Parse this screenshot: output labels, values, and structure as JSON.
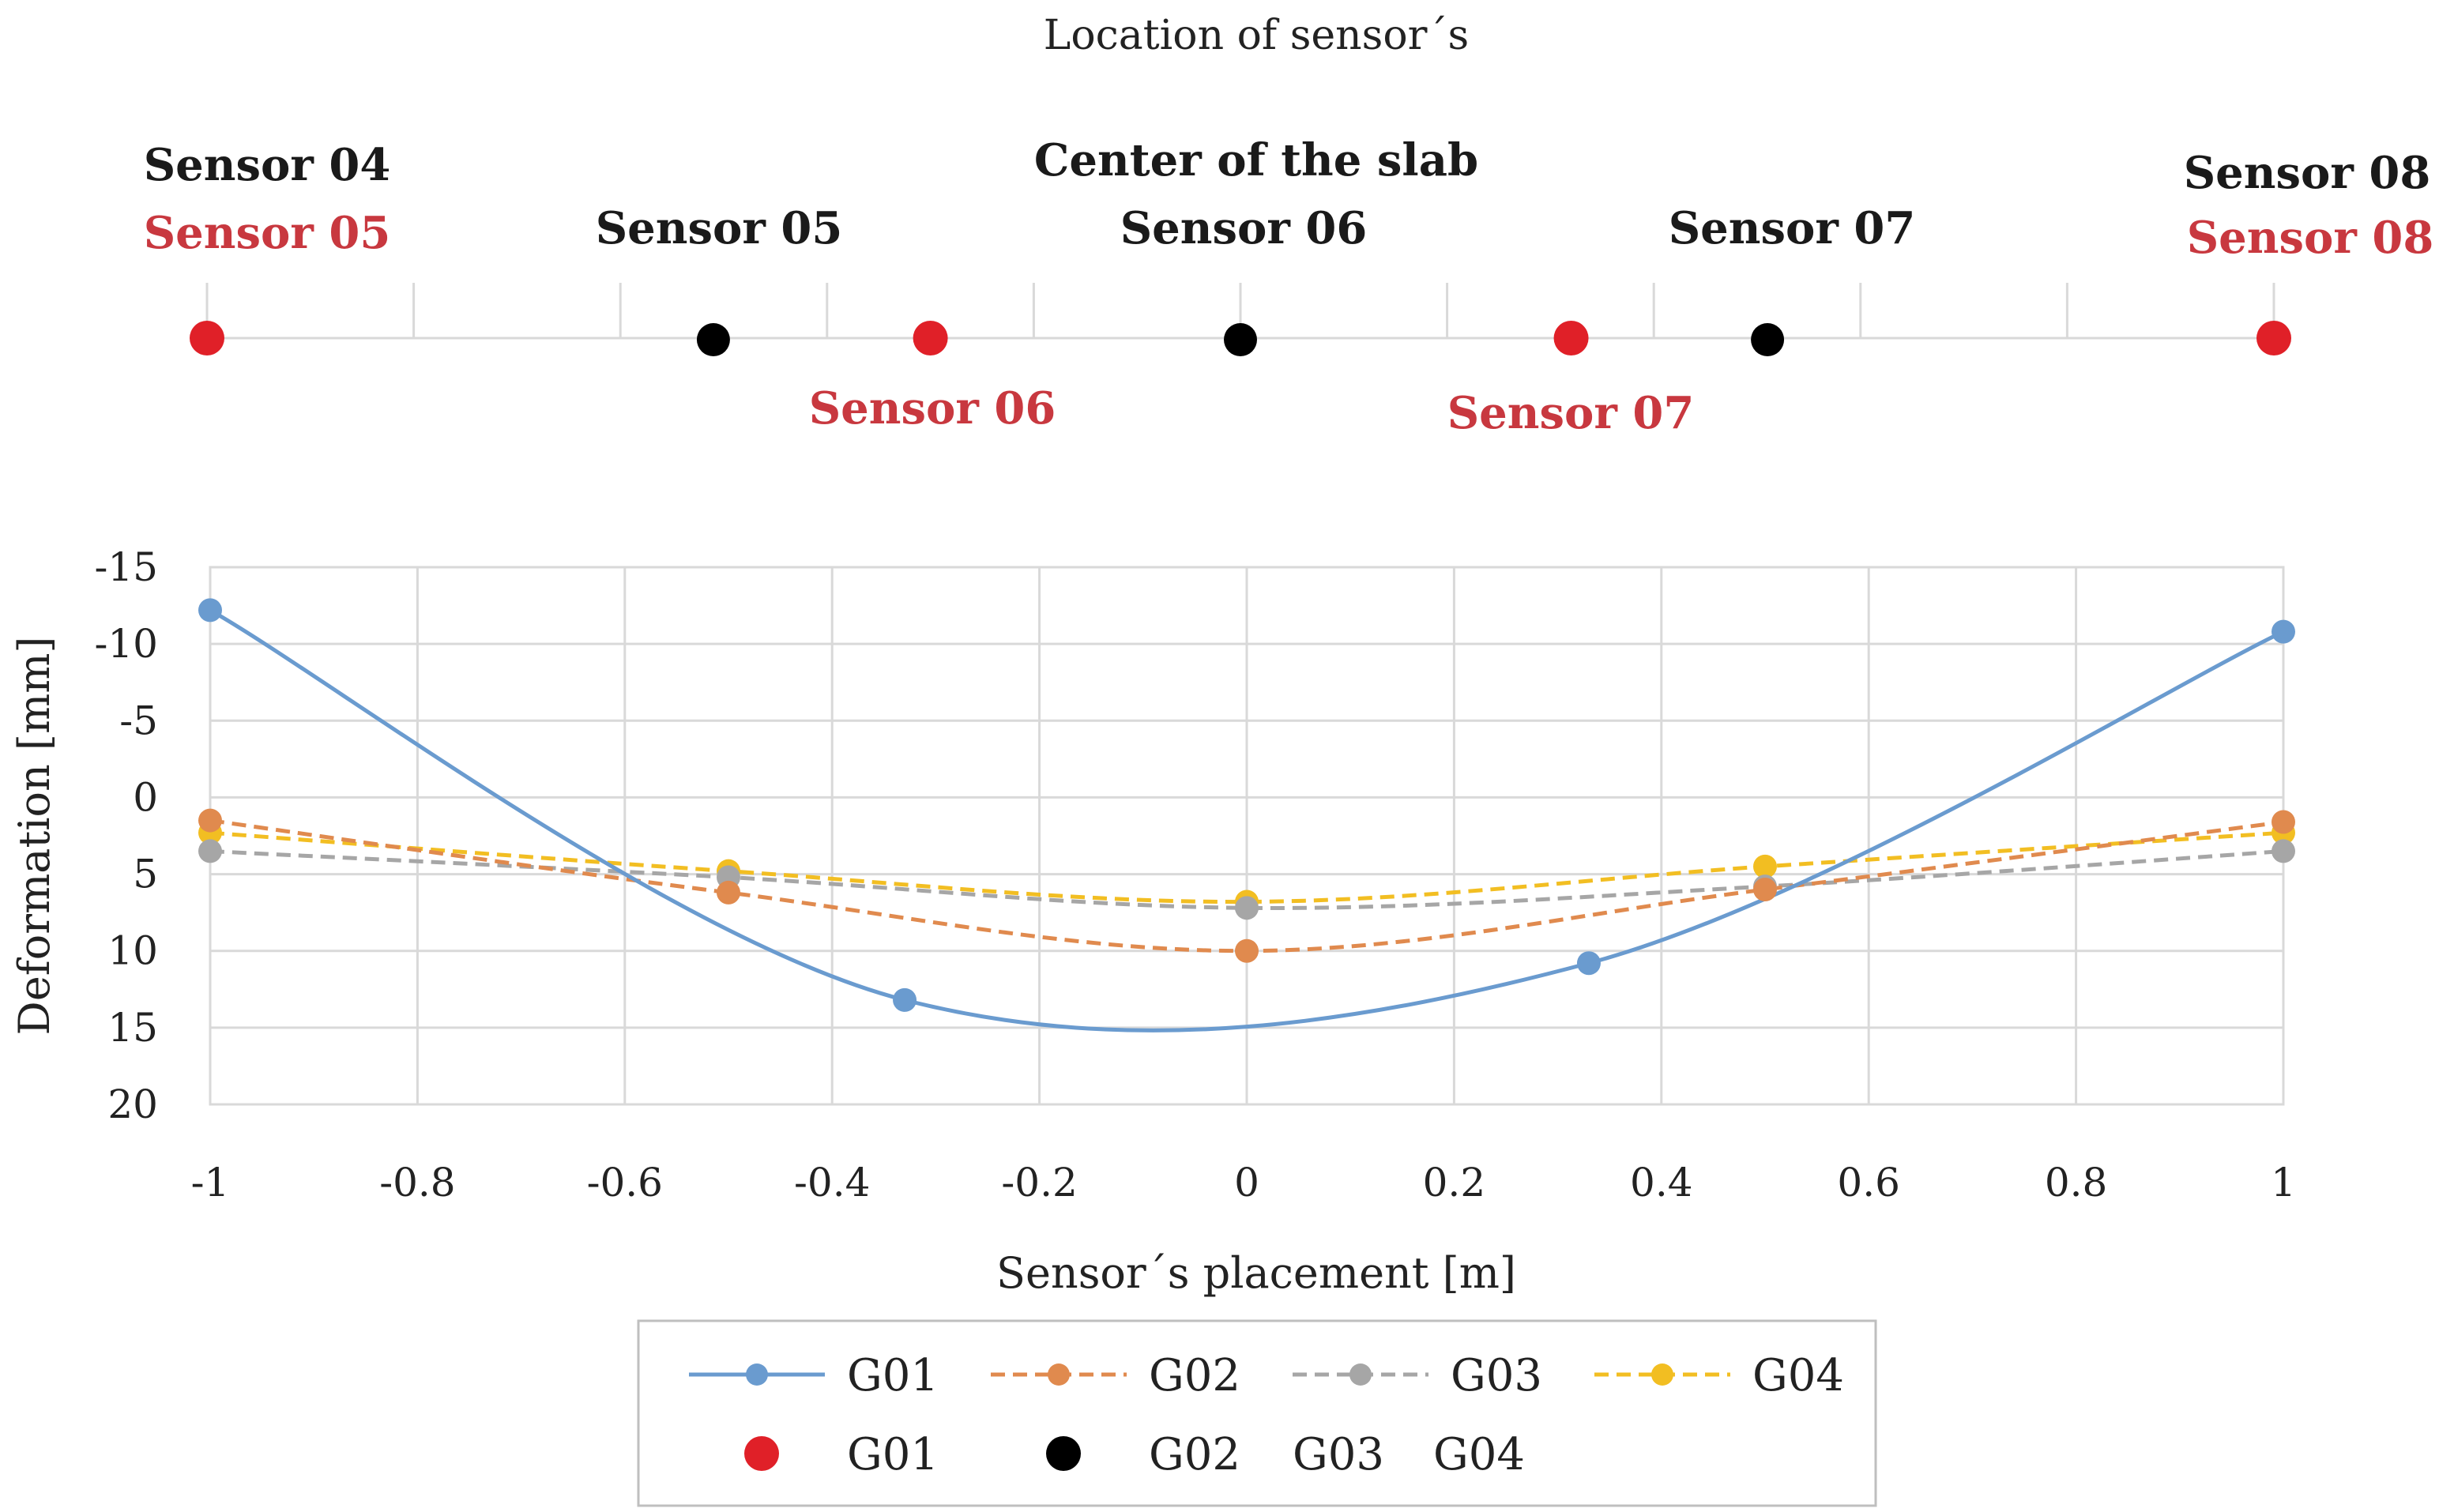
{
  "chart_data": {
    "type": "line",
    "title": "Location of sensor´s",
    "xlabel": "Sensor´s placement [m]",
    "ylabel": "Deformation [mm]",
    "xlim": [
      -1,
      1
    ],
    "ylim": [
      -15,
      20
    ],
    "y_inverted": true,
    "grid": true,
    "x_ticks": [
      "-1",
      "-0.8",
      "-0.6",
      "-0.4",
      "-0.2",
      "0",
      "0.2",
      "0.4",
      "0.6",
      "0.8",
      "1"
    ],
    "x_tick_values": [
      -1,
      -0.8,
      -0.6,
      -0.4,
      -0.2,
      0,
      0.2,
      0.4,
      0.6,
      0.8,
      1
    ],
    "y_ticks": [
      "-15",
      "-10",
      "-5",
      "0",
      "5",
      "10",
      "15",
      "20"
    ],
    "y_tick_values": [
      -15,
      -10,
      -5,
      0,
      5,
      10,
      15,
      20
    ],
    "series": [
      {
        "name": "G01",
        "color": "#6a9bcf",
        "dash": "solid",
        "x": [
          -1,
          -0.33,
          0.33,
          1
        ],
        "y": [
          -12.2,
          13.2,
          10.8,
          -10.8
        ]
      },
      {
        "name": "G02",
        "color": "#e08a4e",
        "dash": "dashed",
        "x": [
          -1,
          -0.5,
          0,
          0.5,
          1
        ],
        "y": [
          1.5,
          6.2,
          10.0,
          6.0,
          1.6
        ]
      },
      {
        "name": "G03",
        "color": "#a6a6a6",
        "dash": "dashed",
        "x": [
          -1,
          -0.5,
          0,
          0.5,
          1
        ],
        "y": [
          3.5,
          5.2,
          7.2,
          5.8,
          3.5
        ]
      },
      {
        "name": "G04",
        "color": "#f2be22",
        "dash": "dashed",
        "x": [
          -1,
          -0.5,
          0,
          0.5,
          1
        ],
        "y": [
          2.3,
          4.8,
          6.8,
          4.5,
          2.3
        ]
      }
    ],
    "sensor_layout": {
      "red_positions": [
        -1,
        -0.3,
        0.32,
        1
      ],
      "black_positions": [
        -0.51,
        0,
        0.51
      ],
      "labels": [
        {
          "text": "Sensor 04",
          "color": "black"
        },
        {
          "text": "Sensor 05",
          "color": "red"
        },
        {
          "text": "Sensor 05",
          "color": "black"
        },
        {
          "text": "Center of the slab",
          "color": "black"
        },
        {
          "text": "Sensor 06",
          "color": "black"
        },
        {
          "text": "Sensor 07",
          "color": "black"
        },
        {
          "text": "Sensor 08",
          "color": "black"
        },
        {
          "text": "Sensor 08",
          "color": "red"
        },
        {
          "text": "Sensor 06",
          "color": "red"
        },
        {
          "text": "Sensor 07",
          "color": "red"
        }
      ],
      "red_color": "#e02028",
      "black_color": "#000000"
    },
    "legend": {
      "line_entries": [
        "G01",
        "G02",
        "G03",
        "G04"
      ],
      "marker_entries": [
        {
          "label": "G01",
          "color": "#e02028"
        },
        {
          "label": "G02",
          "color": "#000000"
        },
        {
          "label": "G03",
          "color": null
        },
        {
          "label": "G04",
          "color": null
        }
      ]
    }
  }
}
